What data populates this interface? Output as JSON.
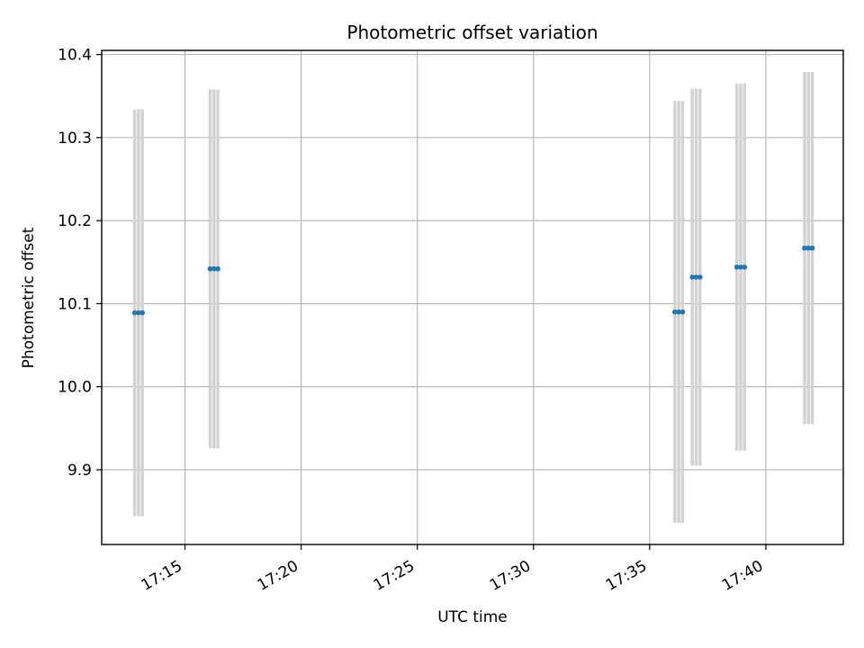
{
  "chart_data": {
    "type": "scatter",
    "title": "Photometric offset variation",
    "xlabel": "UTC time",
    "ylabel": "Photometric offset",
    "x_ticks": [
      "17:15",
      "17:20",
      "17:25",
      "17:30",
      "17:35",
      "17:40"
    ],
    "y_ticks": [
      "9.9",
      "10.0",
      "10.1",
      "10.2",
      "10.3",
      "10.4"
    ],
    "xlim": [
      "17:11:25",
      "17:43:20"
    ],
    "ylim": [
      9.81,
      10.405
    ],
    "grid": true,
    "marker_color": "#1f77b4",
    "errorbar_color": "#d3d3d3",
    "series": [
      {
        "points": [
          {
            "x": "17:12:50",
            "y": 10.089,
            "yerr": 0.245
          },
          {
            "x": "17:13:00",
            "y": 10.089,
            "yerr": 0.245
          },
          {
            "x": "17:13:10",
            "y": 10.089,
            "yerr": 0.245
          },
          {
            "x": "17:16:05",
            "y": 10.142,
            "yerr": 0.216
          },
          {
            "x": "17:16:15",
            "y": 10.142,
            "yerr": 0.216
          },
          {
            "x": "17:16:25",
            "y": 10.142,
            "yerr": 0.216
          },
          {
            "x": "17:36:05",
            "y": 10.09,
            "yerr": 0.254
          },
          {
            "x": "17:36:15",
            "y": 10.09,
            "yerr": 0.254
          },
          {
            "x": "17:36:25",
            "y": 10.09,
            "yerr": 0.254
          },
          {
            "x": "17:36:50",
            "y": 10.132,
            "yerr": 0.227
          },
          {
            "x": "17:37:00",
            "y": 10.132,
            "yerr": 0.227
          },
          {
            "x": "17:37:10",
            "y": 10.132,
            "yerr": 0.227
          },
          {
            "x": "17:38:45",
            "y": 10.144,
            "yerr": 0.221
          },
          {
            "x": "17:38:55",
            "y": 10.144,
            "yerr": 0.221
          },
          {
            "x": "17:39:05",
            "y": 10.144,
            "yerr": 0.221
          },
          {
            "x": "17:41:40",
            "y": 10.167,
            "yerr": 0.212
          },
          {
            "x": "17:41:50",
            "y": 10.167,
            "yerr": 0.212
          },
          {
            "x": "17:42:00",
            "y": 10.167,
            "yerr": 0.212
          }
        ]
      }
    ]
  }
}
